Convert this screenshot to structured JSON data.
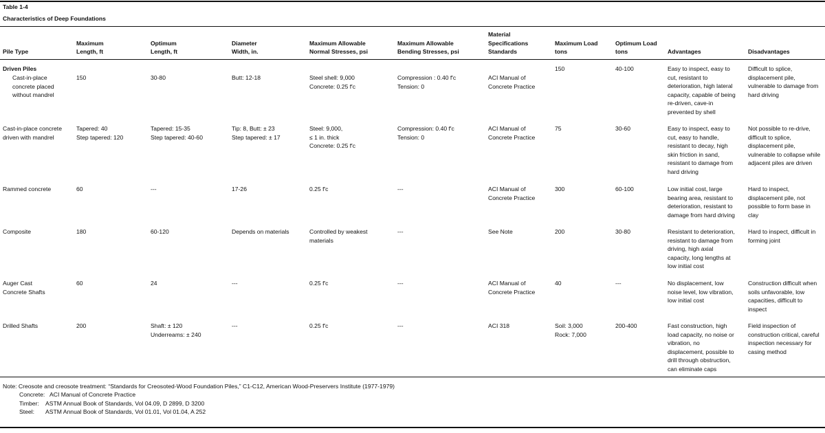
{
  "title": "Table 1-4",
  "subtitle": "Characteristics of Deep Foundations",
  "table": {
    "header": [
      [
        "Pile Type"
      ],
      [
        "Maximum",
        "Length, ft"
      ],
      [
        "Optimum",
        "Length, ft"
      ],
      [
        "Diameter",
        "Width, in."
      ],
      [
        "Maximum Allowable",
        "Normal Stresses, psi"
      ],
      [
        "Maximum Allowable",
        "Bending Stresses, psi"
      ],
      [
        "Material",
        "Specifications",
        "Standards"
      ],
      [
        "Maximum Load",
        "tons"
      ],
      [
        "Optimum Load",
        "tons"
      ],
      [
        "Advantages"
      ],
      [
        "Disadvantages"
      ]
    ],
    "group": "Driven Piles",
    "rows": [
      [
        [
          "Cast-in-place",
          "concrete placed",
          "without mandrel"
        ],
        [
          "150"
        ],
        [
          "30-80"
        ],
        [
          "Butt: 12-18"
        ],
        [
          "Steel shell: 9,000",
          "Concrete: 0.25 f′c"
        ],
        [
          "Compression : 0.40 f′c",
          "Tension: 0"
        ],
        [
          "ACI Manual of",
          "Concrete Practice"
        ],
        [
          "150"
        ],
        [
          "40-100"
        ],
        [
          "Easy to inspect, easy to",
          "cut, resistant to",
          "deterioration, high lateral",
          "capacity, capable of being",
          "re-driven, cave-in",
          "prevented by shell"
        ],
        [
          "Difficult to splice,",
          "displacement pile,",
          "vulnerable to damage from",
          "hard driving"
        ]
      ],
      [
        [
          "Cast-in-place concrete",
          "driven with mandrel"
        ],
        [
          "Tapered: 40",
          "Step tapered: 120"
        ],
        [
          "Tapered: 15-35",
          "Step tapered: 40-60"
        ],
        [
          "Tip: 8, Butt: ± 23",
          "Step tapered: ± 17"
        ],
        [
          "Steel: 9,000,",
          "≤ 1 in. thick",
          "Concrete: 0.25 f′c"
        ],
        [
          "Compression: 0.40 f′c",
          "Tension: 0"
        ],
        [
          "ACI Manual of",
          "Concrete Practice"
        ],
        [
          "75"
        ],
        [
          "30-60"
        ],
        [
          "Easy to inspect, easy to",
          "cut, easy to handle,",
          "resistant to decay, high",
          "skin friction in sand,",
          "resistant to damage from",
          "hard driving"
        ],
        [
          "Not possible to re-drive,",
          "difficult to splice,",
          "displacement pile,",
          "vulnerable to collapse while",
          "adjacent piles are driven"
        ]
      ],
      [
        [
          "Rammed concrete"
        ],
        [
          "60"
        ],
        [
          "---"
        ],
        [
          "17-26"
        ],
        [
          "0.25 f′c"
        ],
        [
          "---"
        ],
        [
          "ACI Manual of",
          "Concrete Practice"
        ],
        [
          "300"
        ],
        [
          "60-100"
        ],
        [
          "Low initial cost, large",
          "bearing area, resistant to",
          "deterioration, resistant to",
          "damage from hard driving"
        ],
        [
          "Hard to inspect,",
          "displacement pile, not",
          "possible to form base in",
          "clay"
        ]
      ],
      [
        [
          "Composite"
        ],
        [
          "180"
        ],
        [
          "60-120"
        ],
        [
          "Depends on materials"
        ],
        [
          "Controlled by weakest",
          "materials"
        ],
        [
          "---"
        ],
        [
          "See Note"
        ],
        [
          "200"
        ],
        [
          "30-80"
        ],
        [
          "Resistant to deterioration,",
          "resistant to damage from",
          "driving, high axial",
          "capacity, long lengths at",
          "low initial cost"
        ],
        [
          "Hard to inspect, difficult in",
          "forming joint"
        ]
      ],
      [
        [
          "Auger Cast",
          "Concrete Shafts"
        ],
        [
          "60"
        ],
        [
          "24"
        ],
        [
          "---"
        ],
        [
          "0.25 f′c"
        ],
        [
          "---"
        ],
        [
          "ACI Manual of",
          "Concrete Practice"
        ],
        [
          "40"
        ],
        [
          "---"
        ],
        [
          "No displacement, low",
          "noise level, low vibration,",
          "low initial cost"
        ],
        [
          "Construction difficult when",
          "soils unfavorable, low",
          "capacities, difficult to",
          "inspect"
        ]
      ],
      [
        [
          "Drilled Shafts"
        ],
        [
          "200"
        ],
        [
          "Shaft: ± 120",
          "Underreams: ± 240"
        ],
        [
          "---"
        ],
        [
          "0.25 f′c"
        ],
        [
          "---"
        ],
        [
          "ACI 318"
        ],
        [
          "Soil: 3,000",
          "Rock: 7,000"
        ],
        [
          "200-400"
        ],
        [
          "Fast construction, high",
          "load capacity, no noise or",
          "vibration, no",
          "displacement, possible to",
          "drill through obstruction,",
          "can eliminate caps"
        ],
        [
          "Field inspection of",
          "construction critical, careful",
          "inspection necessary for",
          "casing method"
        ]
      ]
    ]
  },
  "notes": {
    "intro": "Note: Creosote and creosote treatment: “Standards for Creosoted-Wood Foundation Piles,” C1-C12, American Wood-Preservers Institute (1977-1979)",
    "items": [
      [
        "Concrete:",
        "ACI Manual of Concrete Practice"
      ],
      [
        "Timber:",
        "ASTM Annual Book of Standards, Vol 04.09, D 2899, D 3200"
      ],
      [
        "Steel:",
        "ASTM Annual Book of Standards, Vol 01.01, Vol 01.04, A 252"
      ]
    ]
  }
}
